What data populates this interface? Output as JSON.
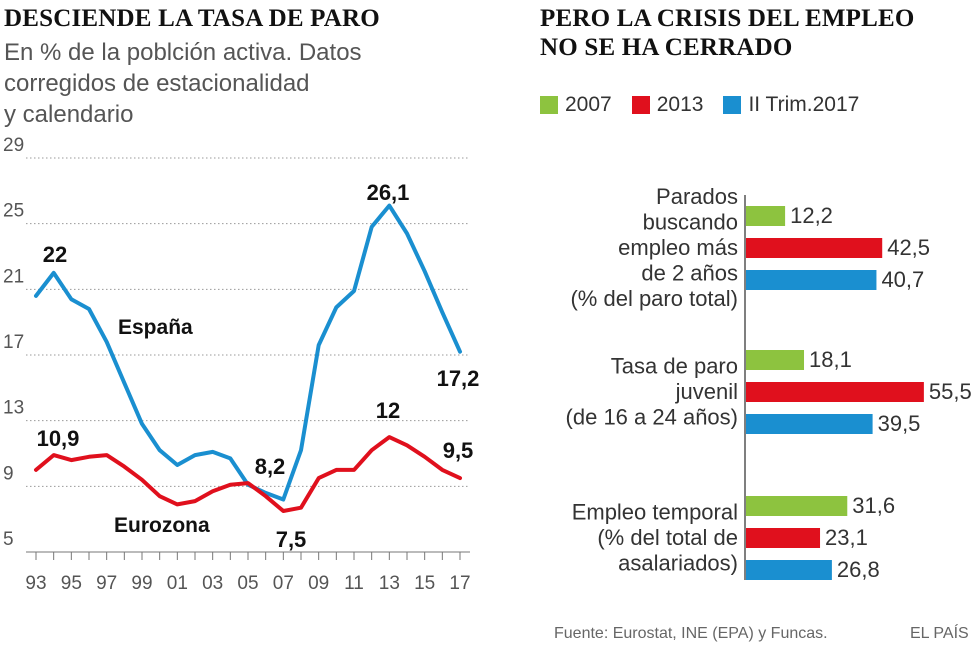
{
  "left": {
    "title": "DESCIENDE LA TASA DE PARO",
    "subtitle_lines": [
      "En % de la poblción activa. Datos",
      "corregidos de estacionalidad",
      "y calendario"
    ]
  },
  "right": {
    "title_lines": [
      "PERO LA CRISIS DEL EMPLEO",
      "NO SE HA CERRADO"
    ]
  },
  "colors": {
    "spain": "#1a8fd0",
    "eurozone": "#e0101d",
    "y2007": "#8dc33f",
    "y2013": "#e0101d",
    "y2017": "#1a8fd0",
    "grid": "#999999"
  },
  "chart_data": [
    {
      "type": "line",
      "title": "DESCIENDE LA TASA DE PARO",
      "ylim": [
        5,
        29
      ],
      "yticks": [
        "5",
        "9",
        "13",
        "17",
        "21",
        "25",
        "29"
      ],
      "xticks": [
        "93",
        "95",
        "97",
        "99",
        "01",
        "03",
        "05",
        "07",
        "09",
        "11",
        "13",
        "15",
        "17"
      ],
      "x": [
        1993,
        1994,
        1995,
        1996,
        1997,
        1998,
        1999,
        2000,
        2001,
        2002,
        2003,
        2004,
        2005,
        2006,
        2007,
        2008,
        2009,
        2010,
        2011,
        2012,
        2013,
        2014,
        2015,
        2016,
        2017
      ],
      "series": [
        {
          "name": "España",
          "values": [
            20.6,
            22.0,
            20.4,
            19.8,
            17.8,
            15.3,
            12.8,
            11.2,
            10.3,
            10.9,
            11.1,
            10.7,
            9.1,
            8.6,
            8.2,
            11.2,
            17.6,
            19.9,
            20.9,
            24.8,
            26.1,
            24.4,
            22.1,
            19.6,
            17.2
          ]
        },
        {
          "name": "Eurozona",
          "values": [
            10.0,
            10.9,
            10.6,
            10.8,
            10.9,
            10.2,
            9.4,
            8.4,
            7.9,
            8.1,
            8.7,
            9.1,
            9.2,
            8.4,
            7.5,
            7.7,
            9.5,
            10.0,
            10.0,
            11.2,
            12.0,
            11.5,
            10.8,
            10.0,
            9.5
          ]
        }
      ],
      "labels": {
        "spain_name": "España",
        "eurozone_name": "Eurozona",
        "spain_max": "22",
        "spain_peak": "26,1",
        "spain_min": "8,2",
        "spain_last": "17,2",
        "euro_first": "10,9",
        "euro_peak": "12",
        "euro_min": "7,5",
        "euro_last": "9,5"
      }
    },
    {
      "type": "bar",
      "title": "PERO LA CRISIS DEL EMPLEO NO SE HA CERRADO",
      "series_names": [
        "2007",
        "2013",
        "II Trim.2017"
      ],
      "groups": [
        {
          "label_lines": [
            "Parados",
            "buscando",
            "empleo más",
            "de 2 años",
            "(% del paro total)"
          ],
          "values": [
            12.2,
            42.5,
            40.7
          ],
          "value_labels": [
            "12,2",
            "42,5",
            "40,7"
          ]
        },
        {
          "label_lines": [
            "Tasa de paro",
            "juvenil",
            "(de 16 a 24 años)"
          ],
          "values": [
            18.1,
            55.5,
            39.5
          ],
          "value_labels": [
            "18,1",
            "55,5",
            "39,5"
          ]
        },
        {
          "label_lines": [
            "Empleo temporal",
            "(% del total de",
            "asalariados)"
          ],
          "values": [
            31.6,
            23.1,
            26.8
          ],
          "value_labels": [
            "31,6",
            "23,1",
            "26,8"
          ]
        }
      ]
    }
  ],
  "footer": {
    "source": "Fuente: Eurostat, INE (EPA) y Funcas.",
    "brand": "EL PAÍS"
  }
}
